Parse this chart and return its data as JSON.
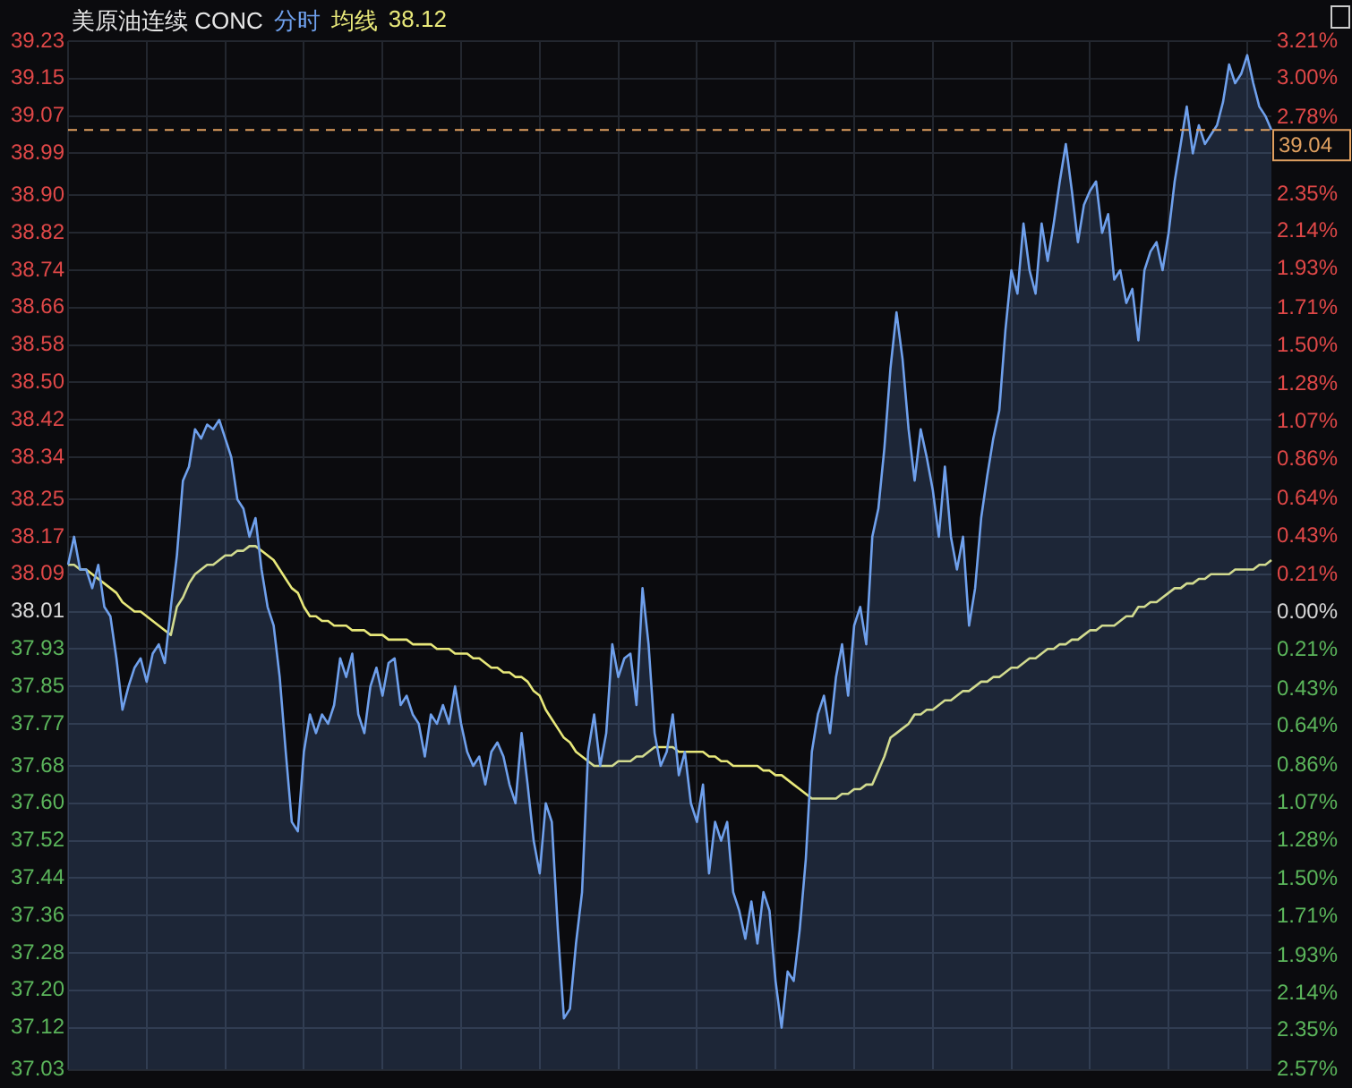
{
  "chart_data": {
    "type": "line",
    "title": "美原油连续 CONC",
    "grid": true,
    "tick_labels": "y",
    "categories": [
      null,
      null,
      null,
      null,
      null,
      null,
      null,
      null,
      null,
      null,
      null,
      null,
      null,
      null,
      null,
      null,
      null,
      null,
      null,
      null,
      null,
      null,
      null,
      null,
      null,
      null,
      null,
      null,
      null,
      null,
      null,
      null,
      null,
      null,
      null,
      null,
      null,
      null,
      null,
      null,
      null,
      null,
      null,
      null,
      null,
      null,
      null,
      null,
      null,
      null,
      null,
      null,
      null,
      null,
      null,
      null,
      null,
      null,
      null,
      null,
      null,
      null,
      null,
      null,
      null,
      null,
      null,
      null,
      null,
      null,
      null,
      null,
      null,
      null,
      null,
      null,
      null,
      null,
      null,
      null,
      null,
      null,
      null,
      null,
      null,
      null,
      null,
      null,
      null,
      null,
      null,
      null,
      null,
      null,
      null,
      null,
      null,
      null,
      null,
      null,
      null,
      null,
      null,
      null,
      null,
      null,
      null,
      null,
      null,
      null,
      null,
      null,
      null,
      null,
      null,
      null,
      null,
      null,
      null,
      null,
      null,
      null,
      null,
      null,
      null,
      null,
      null,
      null,
      null,
      null,
      null,
      null,
      null,
      null,
      null,
      null,
      null,
      null,
      null,
      null,
      null,
      null,
      null,
      null,
      null,
      null,
      null,
      null,
      null,
      null,
      null,
      null,
      null,
      null,
      null,
      null,
      null,
      null,
      null,
      null,
      null,
      null,
      null,
      null,
      null,
      null,
      null,
      null,
      null,
      null,
      null,
      null,
      null,
      null,
      null,
      null,
      null,
      null,
      null,
      null,
      null,
      null,
      null,
      null,
      null,
      null,
      null,
      null,
      null,
      null,
      null,
      null,
      null,
      null,
      null,
      null,
      null,
      null,
      null,
      null
    ],
    "annotations": [
      "38.12"
    ],
    "ylim": [
      37.03,
      39.23
    ],
    "yticks": [
      {
        "value": 39.23,
        "label": "39.23"
      },
      {
        "value": 39.15,
        "label": "39.15"
      },
      {
        "value": 39.07,
        "label": "39.07"
      },
      {
        "value": 38.99,
        "label": "38.99"
      },
      {
        "value": 38.9,
        "label": "38.90"
      },
      {
        "value": 38.82,
        "label": "38.82"
      },
      {
        "value": 38.74,
        "label": "38.74"
      },
      {
        "value": 38.66,
        "label": "38.66"
      },
      {
        "value": 38.58,
        "label": "38.58"
      },
      {
        "value": 38.5,
        "label": "38.50"
      },
      {
        "value": 38.42,
        "label": "38.42"
      },
      {
        "value": 38.34,
        "label": "38.34"
      },
      {
        "value": 38.25,
        "label": "38.25"
      },
      {
        "value": 38.17,
        "label": "38.17"
      },
      {
        "value": 38.09,
        "label": "38.09"
      },
      {
        "value": 38.01,
        "label": "38.01"
      },
      {
        "value": 37.93,
        "label": "37.93"
      },
      {
        "value": 37.85,
        "label": "37.85"
      },
      {
        "value": 37.77,
        "label": "37.77"
      },
      {
        "value": 37.68,
        "label": "37.68"
      },
      {
        "value": 37.6,
        "label": "37.60"
      },
      {
        "value": 37.52,
        "label": "37.52"
      },
      {
        "value": 37.44,
        "label": "37.44"
      },
      {
        "value": 37.36,
        "label": "37.36"
      },
      {
        "value": 37.28,
        "label": "37.28"
      },
      {
        "value": 37.2,
        "label": "37.20"
      },
      {
        "value": 37.12,
        "label": "37.12"
      },
      {
        "value": 37.03,
        "label": "37.03"
      }
    ],
    "y2lim": [
      -2.57,
      3.21
    ],
    "y2ticks": [
      {
        "value": 3.21,
        "label": "3.21%"
      },
      {
        "value": 3.0,
        "label": "3.00%"
      },
      {
        "value": 2.78,
        "label": "2.78%"
      },
      {
        "value": 2.35,
        "label": "2.35%"
      },
      {
        "value": 2.14,
        "label": "2.14%"
      },
      {
        "value": 1.93,
        "label": "1.93%"
      },
      {
        "value": 1.71,
        "label": "1.71%"
      },
      {
        "value": 1.5,
        "label": "1.50%"
      },
      {
        "value": 1.28,
        "label": "1.28%"
      },
      {
        "value": 1.07,
        "label": "1.07%"
      },
      {
        "value": 0.86,
        "label": "0.86%"
      },
      {
        "value": 0.64,
        "label": "0.64%"
      },
      {
        "value": 0.43,
        "label": "0.43%"
      },
      {
        "value": 0.21,
        "label": "0.21%"
      },
      {
        "value": 0.0,
        "label": "0.00%"
      },
      {
        "value": -0.21,
        "label": "0.21%"
      },
      {
        "value": -0.43,
        "label": "0.43%"
      },
      {
        "value": -0.64,
        "label": "0.64%"
      },
      {
        "value": -0.86,
        "label": "0.86%"
      },
      {
        "value": -1.07,
        "label": "1.07%"
      },
      {
        "value": -1.28,
        "label": "1.28%"
      },
      {
        "value": -1.5,
        "label": "1.50%"
      },
      {
        "value": -1.71,
        "label": "1.71%"
      },
      {
        "value": -1.93,
        "label": "1.93%"
      },
      {
        "value": -2.14,
        "label": "2.14%"
      },
      {
        "value": -2.35,
        "label": "2.35%"
      },
      {
        "value": -2.57,
        "label": "2.57%"
      }
    ],
    "ref_lines": [
      {
        "axis": "y",
        "value": 39.04,
        "label": "39.04",
        "color": "#e0a060",
        "line_style": "dashed"
      }
    ],
    "series": [
      {
        "name": "分时",
        "type": "area",
        "color": "#6fa0ec",
        "values": [
          38.11,
          38.17,
          38.1,
          38.1,
          38.06,
          38.11,
          38.02,
          38.0,
          37.91,
          37.8,
          37.85,
          37.89,
          37.91,
          37.86,
          37.92,
          37.94,
          37.9,
          38.02,
          38.13,
          38.29,
          38.32,
          38.4,
          38.38,
          38.41,
          38.4,
          38.42,
          38.38,
          38.34,
          38.25,
          38.23,
          38.17,
          38.21,
          38.1,
          38.02,
          37.98,
          37.87,
          37.71,
          37.56,
          37.54,
          37.71,
          37.79,
          37.75,
          37.79,
          37.77,
          37.81,
          37.91,
          37.87,
          37.92,
          37.79,
          37.75,
          37.85,
          37.89,
          37.83,
          37.9,
          37.91,
          37.81,
          37.83,
          37.79,
          37.77,
          37.7,
          37.79,
          37.77,
          37.81,
          37.77,
          37.85,
          37.77,
          37.71,
          37.68,
          37.7,
          37.64,
          37.71,
          37.73,
          37.7,
          37.64,
          37.6,
          37.75,
          37.64,
          37.52,
          37.45,
          37.6,
          37.56,
          37.33,
          37.14,
          37.16,
          37.3,
          37.41,
          37.71,
          37.79,
          37.68,
          37.75,
          37.94,
          37.87,
          37.91,
          37.92,
          37.81,
          38.06,
          37.94,
          37.75,
          37.68,
          37.71,
          37.79,
          37.66,
          37.71,
          37.6,
          37.56,
          37.64,
          37.45,
          37.56,
          37.52,
          37.56,
          37.41,
          37.37,
          37.31,
          37.39,
          37.3,
          37.41,
          37.37,
          37.22,
          37.12,
          37.24,
          37.22,
          37.33,
          37.48,
          37.71,
          37.79,
          37.83,
          37.75,
          37.87,
          37.94,
          37.83,
          37.98,
          38.02,
          37.94,
          38.17,
          38.23,
          38.36,
          38.53,
          38.65,
          38.55,
          38.4,
          38.29,
          38.4,
          38.34,
          38.27,
          38.17,
          38.32,
          38.17,
          38.1,
          38.17,
          37.98,
          38.06,
          38.21,
          38.3,
          38.38,
          38.44,
          38.61,
          38.74,
          38.69,
          38.84,
          38.74,
          38.69,
          38.84,
          38.76,
          38.84,
          38.93,
          39.01,
          38.91,
          38.8,
          38.88,
          38.91,
          38.93,
          38.82,
          38.86,
          38.72,
          38.74,
          38.67,
          38.7,
          38.59,
          38.74,
          38.78,
          38.8,
          38.74,
          38.82,
          38.93,
          39.01,
          39.09,
          38.99,
          39.05,
          39.01,
          39.03,
          39.05,
          39.1,
          39.18,
          39.14,
          39.16,
          39.2,
          39.14,
          39.09,
          39.07,
          39.04
        ]
      },
      {
        "name": "均线",
        "type": "line",
        "color": "#e8e87a",
        "values": [
          38.11,
          38.11,
          38.1,
          38.1,
          38.09,
          38.08,
          38.07,
          38.06,
          38.05,
          38.03,
          38.02,
          38.01,
          38.01,
          38.0,
          37.99,
          37.98,
          37.97,
          37.96,
          38.02,
          38.04,
          38.07,
          38.09,
          38.1,
          38.11,
          38.11,
          38.12,
          38.13,
          38.13,
          38.14,
          38.14,
          38.15,
          38.15,
          38.14,
          38.13,
          38.12,
          38.1,
          38.08,
          38.06,
          38.05,
          38.02,
          38.0,
          38.0,
          37.99,
          37.99,
          37.98,
          37.98,
          37.98,
          37.97,
          37.97,
          37.97,
          37.96,
          37.96,
          37.96,
          37.95,
          37.95,
          37.95,
          37.95,
          37.94,
          37.94,
          37.94,
          37.94,
          37.93,
          37.93,
          37.93,
          37.92,
          37.92,
          37.92,
          37.91,
          37.91,
          37.9,
          37.89,
          37.89,
          37.88,
          37.88,
          37.87,
          37.87,
          37.86,
          37.84,
          37.83,
          37.8,
          37.78,
          37.76,
          37.74,
          37.73,
          37.71,
          37.7,
          37.69,
          37.68,
          37.68,
          37.68,
          37.68,
          37.69,
          37.69,
          37.69,
          37.7,
          37.7,
          37.71,
          37.72,
          37.72,
          37.72,
          37.72,
          37.71,
          37.71,
          37.71,
          37.71,
          37.71,
          37.7,
          37.7,
          37.69,
          37.69,
          37.68,
          37.68,
          37.68,
          37.68,
          37.68,
          37.67,
          37.67,
          37.66,
          37.66,
          37.65,
          37.64,
          37.63,
          37.62,
          37.61,
          37.61,
          37.61,
          37.61,
          37.61,
          37.62,
          37.62,
          37.63,
          37.63,
          37.64,
          37.64,
          37.67,
          37.7,
          37.74,
          37.75,
          37.76,
          37.77,
          37.79,
          37.79,
          37.8,
          37.8,
          37.81,
          37.82,
          37.82,
          37.83,
          37.84,
          37.84,
          37.85,
          37.86,
          37.86,
          37.87,
          37.87,
          37.88,
          37.89,
          37.89,
          37.9,
          37.91,
          37.91,
          37.92,
          37.93,
          37.93,
          37.94,
          37.94,
          37.95,
          37.95,
          37.96,
          37.97,
          37.97,
          37.98,
          37.98,
          37.98,
          37.99,
          38.0,
          38.0,
          38.02,
          38.02,
          38.03,
          38.03,
          38.04,
          38.05,
          38.06,
          38.06,
          38.07,
          38.07,
          38.08,
          38.08,
          38.09,
          38.09,
          38.09,
          38.09,
          38.1,
          38.1,
          38.1,
          38.1,
          38.11,
          38.11,
          38.12
        ]
      }
    ]
  }
}
